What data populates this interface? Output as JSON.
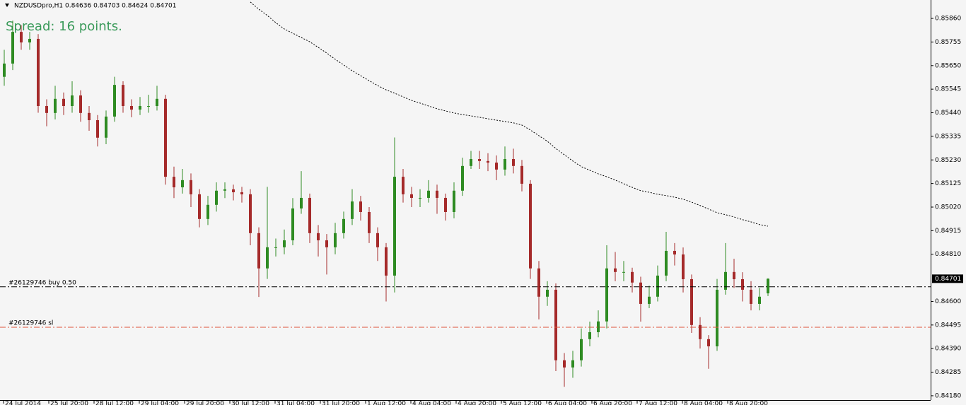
{
  "chart_data": {
    "type": "candlestick",
    "header": "NZDUSDpro,H1  0.84636 0.84703 0.84624 0.84701",
    "spread_text": "Spread: 16 points.",
    "up_color": "#2e8b22",
    "down_color": "#a52a2a",
    "open": [
      0.856,
      0.85659,
      0.858,
      0.85753,
      0.85769,
      0.8547,
      0.85439,
      0.85502,
      0.8547,
      0.85517,
      0.85439,
      0.85407,
      0.85329,
      0.85423,
      0.85564,
      0.8547,
      0.85454,
      0.8547,
      0.8547,
      0.85502,
      0.85155,
      0.85108,
      0.8514,
      0.85077,
      0.84967,
      0.8503,
      0.85093,
      0.85099,
      0.85086,
      0.85077,
      0.84904,
      0.84747,
      0.84841,
      0.84841,
      0.84872,
      0.85014,
      0.85061,
      0.84904,
      0.84872,
      0.84841,
      0.84904,
      0.84967,
      0.85045,
      0.84998,
      0.84904,
      0.84841,
      0.84715,
      0.85155,
      0.85077,
      0.85061,
      0.85061,
      0.85093,
      0.85061,
      0.84998,
      0.85093,
      0.85203,
      0.85234,
      0.85225,
      0.85218,
      0.85187,
      0.85234,
      0.85203,
      0.85124,
      0.84747,
      0.84621,
      0.84652,
      0.84338,
      0.84306,
      0.84338,
      0.84432,
      0.84463,
      0.84511,
      0.84747,
      0.84731,
      0.84731,
      0.84684,
      0.84589,
      0.84621,
      0.84715,
      0.84825,
      0.84809,
      0.84699,
      0.84495,
      0.84432,
      0.844,
      0.84652,
      0.84731,
      0.84699,
      0.84652,
      0.84589,
      0.84636
    ],
    "high": [
      0.8572,
      0.8585,
      0.8583,
      0.858,
      0.8579,
      0.855,
      0.8556,
      0.8553,
      0.8558,
      0.8554,
      0.8547,
      0.8543,
      0.8545,
      0.856,
      0.8558,
      0.855,
      0.8551,
      0.8552,
      0.8556,
      0.8552,
      0.852,
      0.8519,
      0.8517,
      0.851,
      0.8507,
      0.8513,
      0.8513,
      0.8512,
      0.8511,
      0.851,
      0.8493,
      0.8511,
      0.8488,
      0.8492,
      0.8506,
      0.8518,
      0.8508,
      0.8494,
      0.849,
      0.8495,
      0.85,
      0.851,
      0.8507,
      0.8502,
      0.8493,
      0.8486,
      0.8533,
      0.8519,
      0.8511,
      0.851,
      0.8514,
      0.8512,
      0.8508,
      0.8513,
      0.8524,
      0.8527,
      0.8527,
      0.8526,
      0.8525,
      0.8529,
      0.8528,
      0.8523,
      0.8514,
      0.8478,
      0.8469,
      0.8468,
      0.8437,
      0.8438,
      0.8448,
      0.8451,
      0.8456,
      0.8485,
      0.8482,
      0.8478,
      0.8475,
      0.8471,
      0.8467,
      0.8476,
      0.8491,
      0.8486,
      0.8484,
      0.8472,
      0.8453,
      0.8445,
      0.847,
      0.8486,
      0.8479,
      0.8473,
      0.8469,
      0.8466,
      0.84703
    ],
    "low": [
      0.8556,
      0.8563,
      0.8572,
      0.8572,
      0.8544,
      0.8538,
      0.8541,
      0.8543,
      0.8544,
      0.854,
      0.8536,
      0.8529,
      0.853,
      0.854,
      0.8544,
      0.8542,
      0.8543,
      0.8544,
      0.8545,
      0.8512,
      0.8506,
      0.8508,
      0.8502,
      0.8493,
      0.8494,
      0.85,
      0.8506,
      0.8505,
      0.8504,
      0.8485,
      0.8462,
      0.847,
      0.848,
      0.8481,
      0.8485,
      0.8499,
      0.8486,
      0.848,
      0.8472,
      0.8481,
      0.8488,
      0.8494,
      0.8496,
      0.8486,
      0.8478,
      0.846,
      0.8464,
      0.8504,
      0.8502,
      0.8502,
      0.8504,
      0.8499,
      0.8496,
      0.8497,
      0.8507,
      0.8519,
      0.8519,
      0.8518,
      0.8514,
      0.8516,
      0.8517,
      0.8509,
      0.847,
      0.8452,
      0.8458,
      0.8429,
      0.8422,
      0.8426,
      0.8431,
      0.844,
      0.8444,
      0.8448,
      0.8469,
      0.8469,
      0.8464,
      0.8451,
      0.8457,
      0.846,
      0.8469,
      0.8476,
      0.8464,
      0.8446,
      0.8439,
      0.843,
      0.8438,
      0.8463,
      0.8466,
      0.846,
      0.8456,
      0.8456,
      0.84624
    ],
    "close": [
      0.85659,
      0.858,
      0.85753,
      0.85769,
      0.8547,
      0.85439,
      0.85502,
      0.8547,
      0.85517,
      0.85439,
      0.85407,
      0.85329,
      0.85423,
      0.85564,
      0.8547,
      0.85454,
      0.8547,
      0.8547,
      0.85502,
      0.85155,
      0.85108,
      0.8514,
      0.85077,
      0.84967,
      0.8503,
      0.85093,
      0.85099,
      0.85086,
      0.85077,
      0.84904,
      0.84747,
      0.84841,
      0.84841,
      0.84872,
      0.85014,
      0.85061,
      0.84904,
      0.84872,
      0.84841,
      0.84904,
      0.84967,
      0.85045,
      0.84998,
      0.84904,
      0.84841,
      0.84715,
      0.85155,
      0.85077,
      0.85061,
      0.85061,
      0.85093,
      0.85061,
      0.84998,
      0.85093,
      0.85203,
      0.85234,
      0.85225,
      0.85218,
      0.85187,
      0.85234,
      0.85203,
      0.85124,
      0.84747,
      0.84621,
      0.84652,
      0.84338,
      0.84306,
      0.84338,
      0.84432,
      0.84463,
      0.84511,
      0.84747,
      0.84731,
      0.84731,
      0.84684,
      0.84589,
      0.84621,
      0.84715,
      0.84825,
      0.84809,
      0.84699,
      0.84495,
      0.84432,
      0.844,
      0.84652,
      0.84731,
      0.84699,
      0.84652,
      0.84589,
      0.84621,
      0.84701
    ],
    "ma": [
      null,
      null,
      null,
      null,
      null,
      null,
      null,
      null,
      null,
      null,
      null,
      null,
      null,
      null,
      null,
      null,
      null,
      null,
      null,
      null,
      null,
      null,
      null,
      null,
      null,
      null,
      null,
      null,
      null,
      0.85933,
      0.85901,
      0.85873,
      0.85841,
      0.85813,
      0.85794,
      0.85775,
      0.85756,
      0.85731,
      0.85706,
      0.85678,
      0.85653,
      0.85627,
      0.85605,
      0.85583,
      0.85561,
      0.85542,
      0.85527,
      0.85511,
      0.85495,
      0.85483,
      0.8547,
      0.85458,
      0.85448,
      0.85439,
      0.85432,
      0.85426,
      0.8542,
      0.85413,
      0.85407,
      0.85401,
      0.85395,
      0.85385,
      0.85363,
      0.85338,
      0.85313,
      0.85281,
      0.85253,
      0.85225,
      0.852,
      0.85184,
      0.85168,
      0.85155,
      0.8514,
      0.85124,
      0.85108,
      0.85093,
      0.85086,
      0.85077,
      0.85071,
      0.85064,
      0.85055,
      0.85042,
      0.85027,
      0.85011,
      0.84995,
      0.84986,
      0.84976,
      0.84964,
      0.84954,
      0.84942,
      0.84935
    ],
    "orders": [
      {
        "label": "#26129746 buy 0.50",
        "price": 0.84665,
        "color": "#000000"
      },
      {
        "label": "#26129746 sl",
        "price": 0.84485,
        "color": "#e0533a"
      }
    ],
    "last_price": 0.84701,
    "ylim": [
      0.84164,
      0.85942
    ],
    "yticks": [
      {
        "value": 0.8586,
        "label": "0.85860"
      },
      0.85755,
      {
        "value": 0.8565,
        "label": "0.85650"
      },
      0.85545,
      {
        "value": 0.8544,
        "label": "0.85440"
      },
      0.85335,
      {
        "value": 0.8523,
        "label": "0.85230"
      },
      0.85125,
      {
        "value": 0.8502,
        "label": "0.85020"
      },
      0.84915,
      {
        "value": 0.8481,
        "label": "0.84810"
      },
      {
        "value": 0.846,
        "label": "0.84600"
      },
      0.84495,
      {
        "value": 0.8439,
        "label": "0.84390"
      },
      0.84285,
      {
        "value": 0.8418,
        "label": "0.84180"
      }
    ],
    "time_labels": [
      "24 Jul 2014",
      "25 Jul 20:00",
      "28 Jul 12:00",
      "29 Jul 04:00",
      "29 Jul 20:00",
      "30 Jul 12:00",
      "31 Jul 04:00",
      "31 Jul 20:00",
      "1 Aug 12:00",
      "4 Aug 04:00",
      "4 Aug 20:00",
      "5 Aug 12:00",
      "6 Aug 04:00",
      "6 Aug 20:00",
      "7 Aug 12:00",
      "8 Aug 04:00",
      "8 Aug 20:00"
    ]
  }
}
